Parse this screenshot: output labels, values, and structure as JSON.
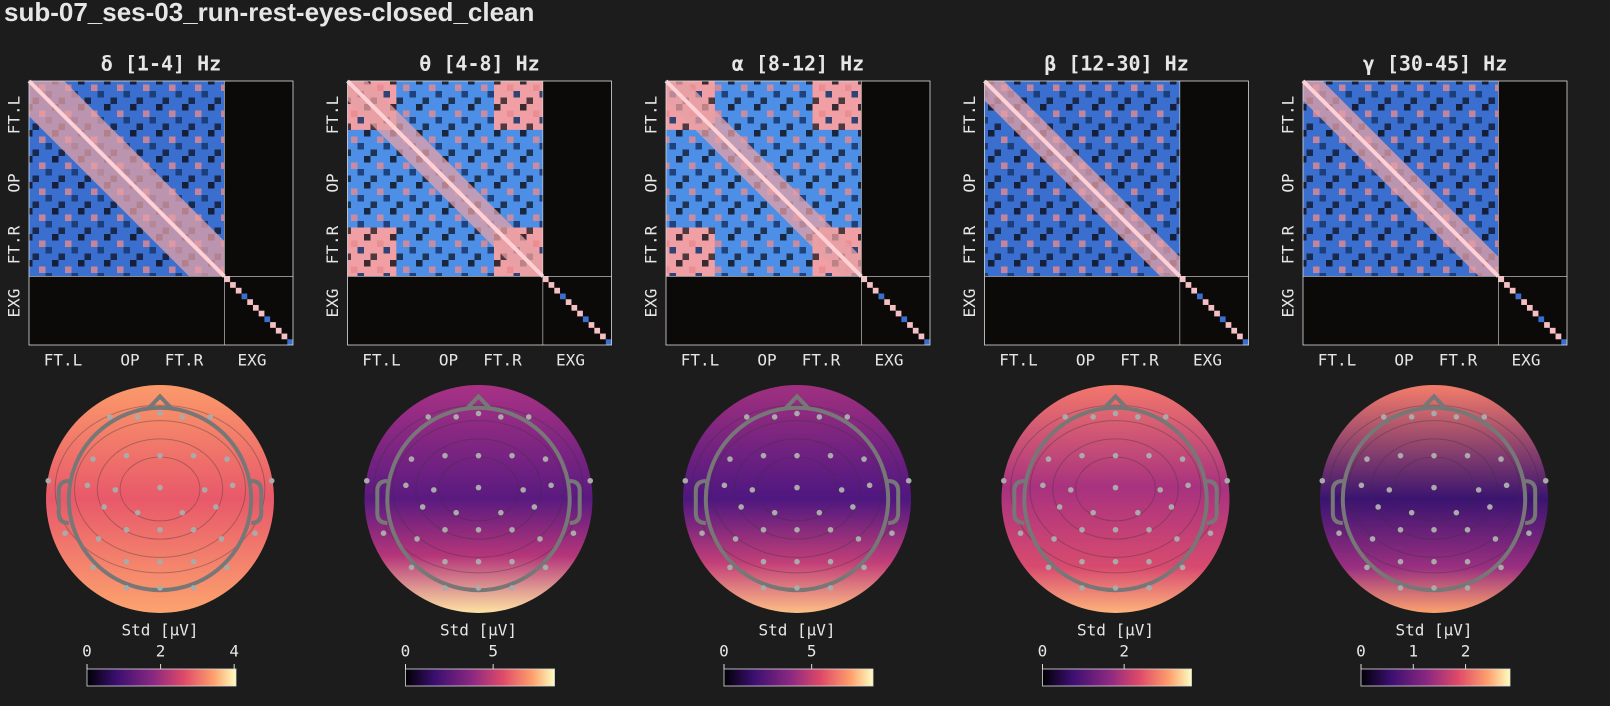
{
  "title": "sub-07_ses-03_run-rest-eyes-closed_clean",
  "channel_groups": [
    "FT.L",
    "OP",
    "FT.R",
    "EXG"
  ],
  "panels": [
    {
      "title": "δ [1-4] Hz",
      "colorbar": {
        "label": "Std [μV]",
        "clim": [
          0,
          4.05
        ],
        "ticks": [
          0,
          2,
          4
        ]
      }
    },
    {
      "title": "θ [4-8] Hz",
      "colorbar": {
        "label": "Std [μV]",
        "clim": [
          0,
          8.5
        ],
        "ticks": [
          0,
          5
        ]
      }
    },
    {
      "title": "α [8-12] Hz",
      "colorbar": {
        "label": "Std [μV]",
        "clim": [
          0,
          8.5
        ],
        "ticks": [
          0,
          5
        ]
      }
    },
    {
      "title": "β [12-30] Hz",
      "colorbar": {
        "label": "Std [μV]",
        "clim": [
          0,
          3.65
        ],
        "ticks": [
          0,
          2
        ]
      }
    },
    {
      "title": "γ [30-45] Hz",
      "colorbar": {
        "label": "Std [μV]",
        "clim": [
          0,
          2.85
        ],
        "ticks": [
          0,
          1,
          2
        ]
      }
    }
  ]
}
